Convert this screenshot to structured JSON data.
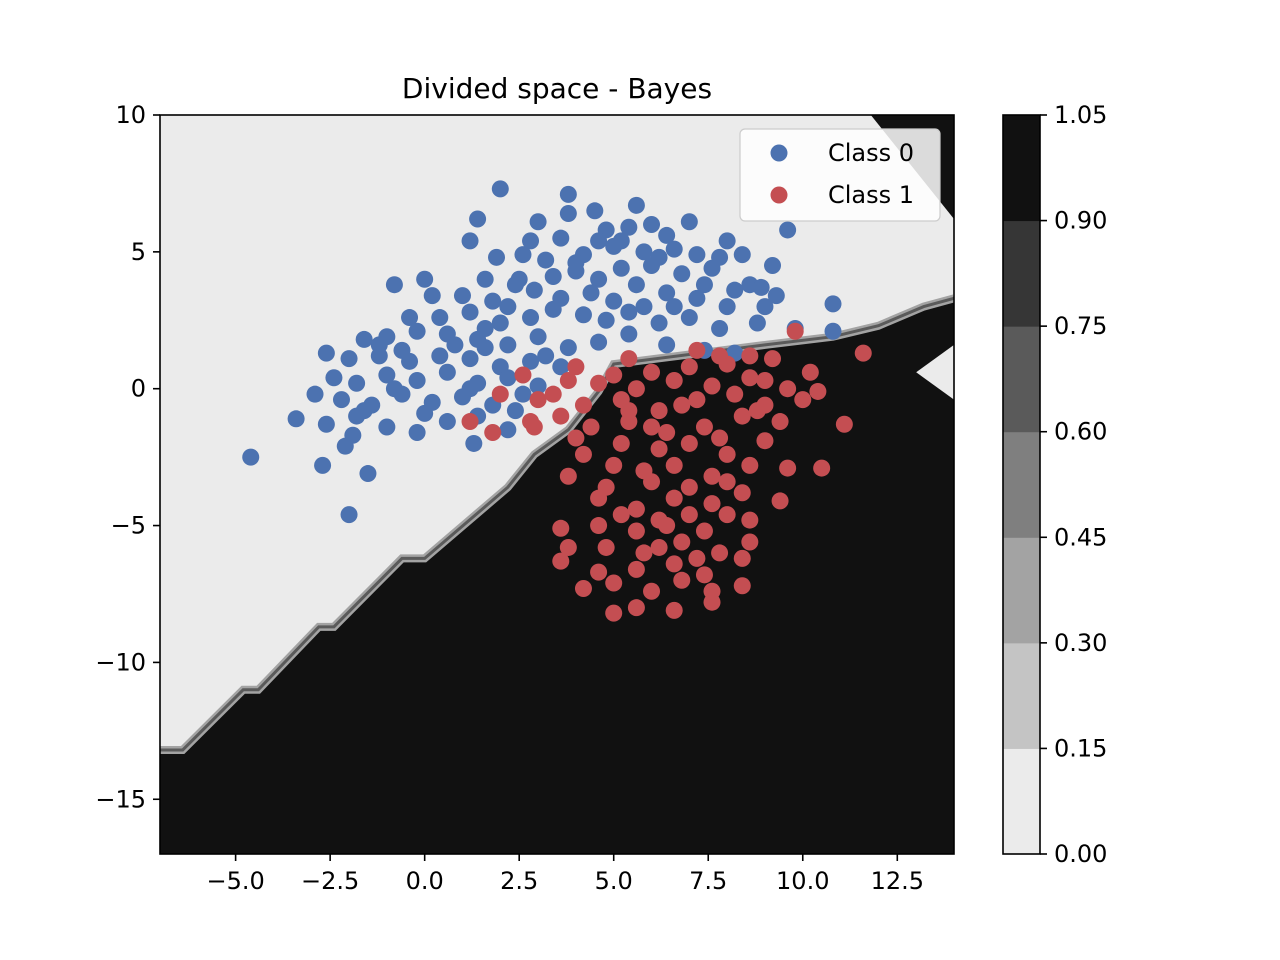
{
  "chart_data": {
    "type": "scatter",
    "title": "Divided space - Bayes",
    "xlabel": "",
    "ylabel": "",
    "xlim": [
      -7,
      14
    ],
    "ylim": [
      -17,
      10
    ],
    "x_ticks": [
      -5.0,
      -2.5,
      0.0,
      2.5,
      5.0,
      7.5,
      10.0,
      12.5
    ],
    "x_tick_labels": [
      "−5.0",
      "−2.5",
      "0.0",
      "2.5",
      "5.0",
      "7.5",
      "10.0",
      "12.5"
    ],
    "y_ticks": [
      10,
      5,
      0,
      -5,
      -10,
      -15
    ],
    "y_tick_labels": [
      "10",
      "5",
      "0",
      "−5",
      "−10",
      "−15"
    ],
    "legend": {
      "position": "top-right",
      "entries": [
        "Class 0",
        "Class 1"
      ]
    },
    "colorbar": {
      "levels": [
        0.0,
        0.15,
        0.3,
        0.45,
        0.6,
        0.75,
        0.9,
        1.05
      ],
      "tick_labels": [
        "0.00",
        "0.15",
        "0.30",
        "0.45",
        "0.60",
        "0.75",
        "0.90",
        "1.05"
      ],
      "colors": [
        "#ebebeb",
        "#c4c4c4",
        "#a3a3a3",
        "#7f7f7f",
        "#5a5a5a",
        "#363636",
        "#111111"
      ]
    },
    "decision_boundary": {
      "class_0_region": "light",
      "class_1_region": "dark",
      "points": [
        [
          -7,
          -13.2
        ],
        [
          -6.4,
          -13.2
        ],
        [
          -4.8,
          -11.0
        ],
        [
          -4.4,
          -11.0
        ],
        [
          -2.8,
          -8.7
        ],
        [
          -2.4,
          -8.7
        ],
        [
          -0.6,
          -6.2
        ],
        [
          0.0,
          -6.2
        ],
        [
          2.2,
          -3.6
        ],
        [
          2.9,
          -2.4
        ],
        [
          3.8,
          -1.5
        ],
        [
          4.6,
          -0.1
        ],
        [
          5.0,
          0.9
        ],
        [
          9.0,
          1.6
        ],
        [
          10.8,
          1.9
        ],
        [
          12.0,
          2.3
        ],
        [
          13.2,
          3.0
        ],
        [
          14.0,
          3.3
        ]
      ],
      "island": [
        [
          13.0,
          0.6
        ],
        [
          14.0,
          1.6
        ],
        [
          14.0,
          -0.4
        ]
      ],
      "top_right_cut": [
        [
          11.8,
          10.0
        ],
        [
          14.0,
          10.0
        ],
        [
          14.0,
          6.2
        ]
      ]
    },
    "series": [
      {
        "name": "Class 0",
        "color": "#4c72b0",
        "points": [
          [
            2.0,
            7.3
          ],
          [
            3.8,
            7.1
          ],
          [
            5.6,
            6.7
          ],
          [
            4.5,
            6.5
          ],
          [
            1.4,
            6.2
          ],
          [
            3.0,
            6.1
          ],
          [
            6.0,
            6.0
          ],
          [
            7.0,
            6.1
          ],
          [
            9.6,
            5.8
          ],
          [
            1.2,
            5.4
          ],
          [
            2.8,
            5.4
          ],
          [
            3.6,
            5.5
          ],
          [
            4.8,
            5.8
          ],
          [
            5.4,
            5.9
          ],
          [
            6.4,
            5.6
          ],
          [
            8.0,
            5.4
          ],
          [
            1.9,
            4.8
          ],
          [
            2.6,
            4.9
          ],
          [
            3.2,
            4.7
          ],
          [
            4.2,
            4.9
          ],
          [
            5.0,
            5.2
          ],
          [
            5.8,
            5.0
          ],
          [
            6.6,
            5.1
          ],
          [
            7.2,
            4.9
          ],
          [
            8.4,
            4.9
          ],
          [
            9.2,
            4.5
          ],
          [
            1.6,
            4.0
          ],
          [
            2.5,
            4.0
          ],
          [
            3.4,
            4.1
          ],
          [
            4.0,
            4.3
          ],
          [
            4.6,
            4.0
          ],
          [
            5.2,
            4.4
          ],
          [
            6.0,
            4.5
          ],
          [
            6.8,
            4.2
          ],
          [
            7.6,
            4.4
          ],
          [
            8.6,
            3.8
          ],
          [
            9.3,
            3.4
          ],
          [
            -0.8,
            3.8
          ],
          [
            0.0,
            4.0
          ],
          [
            1.0,
            3.4
          ],
          [
            1.8,
            3.2
          ],
          [
            2.2,
            3.0
          ],
          [
            2.9,
            3.6
          ],
          [
            3.6,
            3.3
          ],
          [
            4.4,
            3.5
          ],
          [
            5.0,
            3.2
          ],
          [
            5.6,
            3.8
          ],
          [
            6.4,
            3.5
          ],
          [
            7.2,
            3.3
          ],
          [
            8.0,
            3.0
          ],
          [
            8.9,
            3.7
          ],
          [
            10.8,
            3.1
          ],
          [
            0.4,
            2.6
          ],
          [
            1.2,
            2.8
          ],
          [
            2.0,
            2.4
          ],
          [
            2.8,
            2.6
          ],
          [
            3.4,
            2.9
          ],
          [
            4.2,
            2.7
          ],
          [
            4.8,
            2.5
          ],
          [
            5.4,
            2.8
          ],
          [
            6.2,
            2.4
          ],
          [
            7.0,
            2.6
          ],
          [
            7.8,
            2.2
          ],
          [
            8.8,
            2.4
          ],
          [
            9.8,
            2.2
          ],
          [
            10.8,
            2.1
          ],
          [
            -1.6,
            1.8
          ],
          [
            -1.0,
            1.9
          ],
          [
            -0.2,
            2.1
          ],
          [
            0.6,
            2.0
          ],
          [
            1.4,
            1.8
          ],
          [
            2.2,
            1.6
          ],
          [
            3.0,
            1.9
          ],
          [
            3.8,
            1.5
          ],
          [
            4.6,
            1.7
          ],
          [
            5.4,
            2.0
          ],
          [
            6.4,
            1.6
          ],
          [
            7.4,
            1.4
          ],
          [
            8.2,
            1.3
          ],
          [
            -2.6,
            1.3
          ],
          [
            -2.0,
            1.1
          ],
          [
            -1.2,
            1.2
          ],
          [
            -0.4,
            1.0
          ],
          [
            0.4,
            1.2
          ],
          [
            1.2,
            1.1
          ],
          [
            2.0,
            0.8
          ],
          [
            2.8,
            1.0
          ],
          [
            3.6,
            0.8
          ],
          [
            -2.4,
            0.4
          ],
          [
            -1.8,
            0.2
          ],
          [
            -1.0,
            0.5
          ],
          [
            -0.2,
            0.3
          ],
          [
            0.6,
            0.6
          ],
          [
            1.4,
            0.2
          ],
          [
            2.2,
            0.4
          ],
          [
            3.0,
            0.1
          ],
          [
            -2.9,
            -0.2
          ],
          [
            -2.2,
            -0.4
          ],
          [
            -1.4,
            -0.6
          ],
          [
            -0.6,
            -0.2
          ],
          [
            0.2,
            -0.5
          ],
          [
            1.0,
            -0.3
          ],
          [
            1.8,
            -0.6
          ],
          [
            2.6,
            -0.2
          ],
          [
            -3.4,
            -1.1
          ],
          [
            -2.6,
            -1.3
          ],
          [
            -1.8,
            -1.0
          ],
          [
            -1.0,
            -1.4
          ],
          [
            -0.2,
            -1.6
          ],
          [
            0.6,
            -1.2
          ],
          [
            1.4,
            -1.0
          ],
          [
            2.2,
            -1.5
          ],
          [
            -2.1,
            -2.1
          ],
          [
            -1.9,
            -1.7
          ],
          [
            1.3,
            -2.0
          ],
          [
            -4.6,
            -2.5
          ],
          [
            -2.7,
            -2.8
          ],
          [
            -1.5,
            -3.1
          ],
          [
            -2.0,
            -4.6
          ],
          [
            -1.2,
            1.6
          ],
          [
            -0.6,
            1.4
          ],
          [
            0.8,
            1.6
          ],
          [
            1.6,
            1.5
          ],
          [
            3.2,
            1.2
          ],
          [
            -0.8,
            0.0
          ],
          [
            0.0,
            -0.9
          ],
          [
            -1.6,
            -0.8
          ],
          [
            1.2,
            0.0
          ],
          [
            2.4,
            -0.8
          ],
          [
            4.0,
            4.6
          ],
          [
            5.2,
            5.4
          ],
          [
            6.2,
            4.8
          ],
          [
            7.4,
            3.8
          ],
          [
            8.2,
            3.6
          ],
          [
            3.8,
            6.4
          ],
          [
            4.6,
            5.4
          ],
          [
            5.8,
            3.0
          ],
          [
            6.6,
            3.0
          ],
          [
            7.8,
            4.8
          ],
          [
            9.0,
            3.0
          ],
          [
            2.4,
            3.8
          ],
          [
            1.6,
            2.2
          ],
          [
            0.2,
            3.4
          ],
          [
            -0.4,
            2.6
          ]
        ]
      },
      {
        "name": "Class 1",
        "color": "#c44e52",
        "points": [
          [
            9.8,
            2.1
          ],
          [
            11.6,
            1.3
          ],
          [
            5.4,
            1.1
          ],
          [
            7.2,
            1.4
          ],
          [
            8.6,
            1.2
          ],
          [
            5.0,
            0.5
          ],
          [
            6.0,
            0.6
          ],
          [
            7.0,
            0.8
          ],
          [
            8.0,
            0.9
          ],
          [
            9.2,
            1.1
          ],
          [
            10.2,
            0.6
          ],
          [
            2.6,
            0.5
          ],
          [
            3.8,
            0.3
          ],
          [
            4.6,
            0.2
          ],
          [
            5.6,
            0.0
          ],
          [
            6.6,
            0.3
          ],
          [
            7.6,
            0.1
          ],
          [
            8.6,
            0.4
          ],
          [
            9.6,
            0.0
          ],
          [
            2.0,
            -0.2
          ],
          [
            3.0,
            -0.4
          ],
          [
            4.2,
            -0.6
          ],
          [
            5.2,
            -0.4
          ],
          [
            6.2,
            -0.8
          ],
          [
            7.2,
            -0.4
          ],
          [
            8.2,
            -0.2
          ],
          [
            9.0,
            -0.6
          ],
          [
            10.0,
            -0.4
          ],
          [
            1.2,
            -1.2
          ],
          [
            1.8,
            -1.6
          ],
          [
            2.8,
            -1.2
          ],
          [
            3.6,
            -1.0
          ],
          [
            4.4,
            -1.4
          ],
          [
            5.4,
            -1.2
          ],
          [
            6.4,
            -1.6
          ],
          [
            7.4,
            -1.4
          ],
          [
            8.4,
            -1.0
          ],
          [
            9.4,
            -1.2
          ],
          [
            11.1,
            -1.3
          ],
          [
            4.2,
            -2.4
          ],
          [
            5.2,
            -2.0
          ],
          [
            6.2,
            -2.2
          ],
          [
            7.0,
            -2.0
          ],
          [
            8.0,
            -2.4
          ],
          [
            9.0,
            -1.9
          ],
          [
            3.8,
            -3.2
          ],
          [
            4.8,
            -3.6
          ],
          [
            5.8,
            -3.0
          ],
          [
            6.6,
            -2.8
          ],
          [
            7.6,
            -3.2
          ],
          [
            8.6,
            -2.8
          ],
          [
            9.6,
            -2.9
          ],
          [
            10.5,
            -2.9
          ],
          [
            4.6,
            -4.0
          ],
          [
            5.6,
            -4.4
          ],
          [
            6.6,
            -4.0
          ],
          [
            7.6,
            -4.2
          ],
          [
            8.4,
            -3.8
          ],
          [
            9.4,
            -4.1
          ],
          [
            3.6,
            -5.1
          ],
          [
            4.6,
            -5.0
          ],
          [
            5.6,
            -5.2
          ],
          [
            6.4,
            -5.0
          ],
          [
            7.4,
            -5.2
          ],
          [
            8.6,
            -4.8
          ],
          [
            3.8,
            -5.8
          ],
          [
            4.8,
            -5.8
          ],
          [
            5.8,
            -6.0
          ],
          [
            6.8,
            -5.6
          ],
          [
            7.8,
            -6.0
          ],
          [
            8.6,
            -5.6
          ],
          [
            3.6,
            -6.3
          ],
          [
            4.6,
            -6.7
          ],
          [
            5.6,
            -6.6
          ],
          [
            6.6,
            -6.4
          ],
          [
            7.4,
            -6.8
          ],
          [
            8.4,
            -6.2
          ],
          [
            4.2,
            -7.3
          ],
          [
            5.0,
            -7.1
          ],
          [
            6.0,
            -7.4
          ],
          [
            6.8,
            -7.0
          ],
          [
            7.6,
            -7.4
          ],
          [
            8.4,
            -7.2
          ],
          [
            5.0,
            -8.2
          ],
          [
            5.6,
            -8.0
          ],
          [
            6.6,
            -8.1
          ],
          [
            7.6,
            -7.8
          ],
          [
            2.9,
            -1.4
          ],
          [
            4.0,
            -1.8
          ],
          [
            6.0,
            -1.4
          ],
          [
            7.8,
            -1.8
          ],
          [
            5.0,
            -2.8
          ],
          [
            6.0,
            -3.4
          ],
          [
            7.0,
            -3.6
          ],
          [
            8.0,
            -3.4
          ],
          [
            5.2,
            -4.6
          ],
          [
            6.2,
            -4.8
          ],
          [
            7.0,
            -4.6
          ],
          [
            8.0,
            -4.6
          ],
          [
            6.2,
            -5.8
          ],
          [
            7.2,
            -6.2
          ],
          [
            5.4,
            -0.8
          ],
          [
            6.8,
            -0.6
          ],
          [
            8.8,
            -0.8
          ],
          [
            3.4,
            -0.2
          ],
          [
            4.0,
            0.8
          ],
          [
            7.8,
            1.2
          ],
          [
            9.0,
            0.3
          ],
          [
            10.4,
            -0.1
          ]
        ]
      }
    ]
  }
}
